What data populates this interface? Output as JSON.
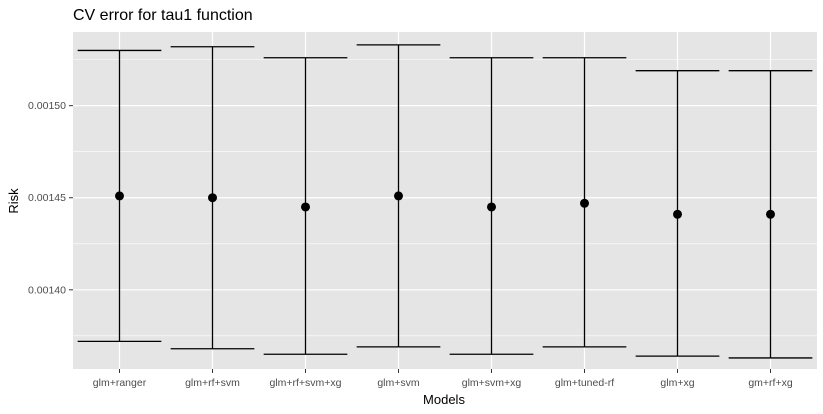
{
  "chart_data": {
    "type": "errorbar",
    "title": "CV error for tau1 function",
    "xlabel": "Models",
    "ylabel": "Risk",
    "categories": [
      "glm+ranger",
      "glm+rf+svm",
      "glm+rf+svm+xg",
      "glm+svm",
      "glm+svm+xg",
      "glm+tuned-rf",
      "glm+xg",
      "gm+rf+xg"
    ],
    "values": [
      0.001451,
      0.00145,
      0.001445,
      0.001451,
      0.001445,
      0.001447,
      0.001441,
      0.001441
    ],
    "lower": [
      0.001372,
      0.001368,
      0.001365,
      0.001369,
      0.001365,
      0.001369,
      0.001364,
      0.001363
    ],
    "upper": [
      0.00153,
      0.001532,
      0.001526,
      0.001533,
      0.001526,
      0.001526,
      0.001519,
      0.001519
    ],
    "yticks": [
      0.0014,
      0.00145,
      0.0015
    ],
    "ytick_labels": [
      "0.00140",
      "0.00145",
      "0.00150"
    ],
    "ylim": [
      0.001357,
      0.00154
    ],
    "grid": true,
    "colors": {
      "panel": "#e5e5e5",
      "grid": "#ffffff",
      "mark": "#000000"
    }
  }
}
